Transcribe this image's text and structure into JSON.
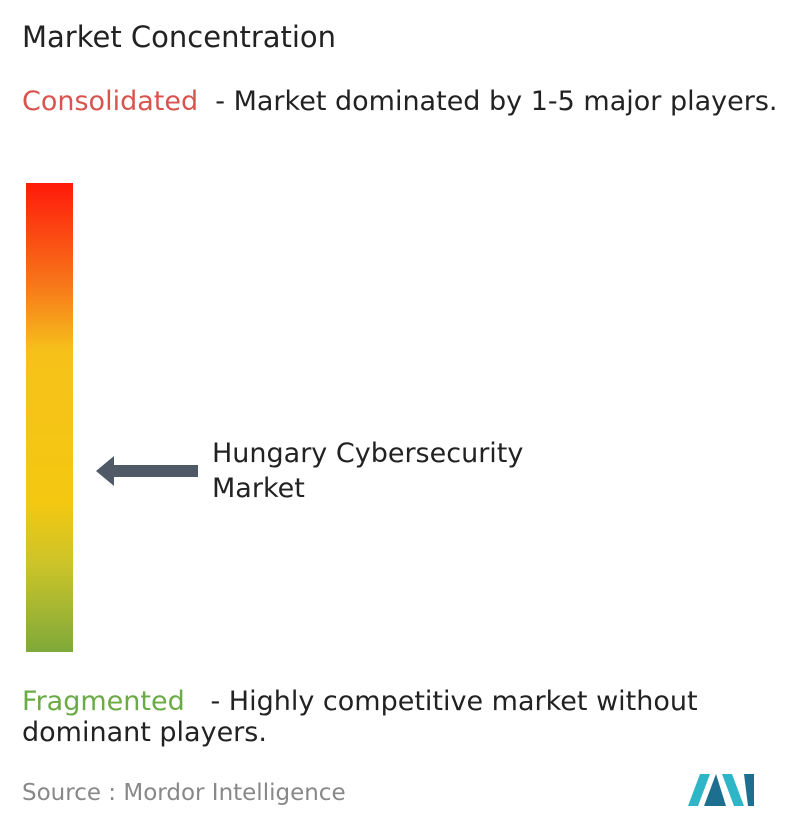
{
  "header": {
    "title": "Market Concentration"
  },
  "consolidated": {
    "label": "Consolidated",
    "description": "- Market dominated by 1-5 major players."
  },
  "marker": {
    "label": "Hungary Cybersecurity Market"
  },
  "fragmented": {
    "label": "Fragmented",
    "description": "- Highly competitive market without dominant players."
  },
  "footer": {
    "source_label": "Source :",
    "source": "Mordor Intelligence"
  }
}
